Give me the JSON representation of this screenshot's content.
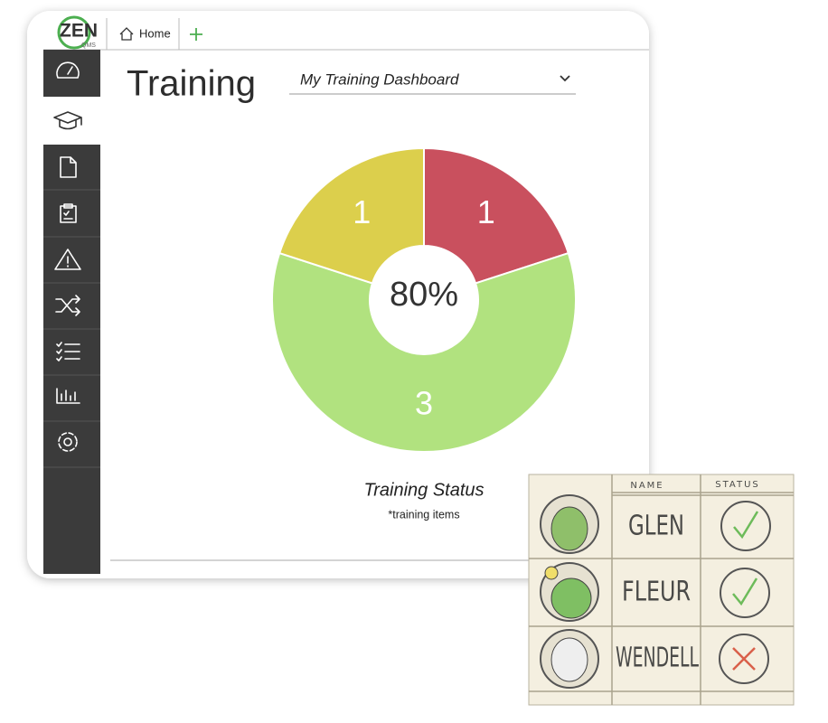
{
  "app": {
    "logo": "ZEN",
    "logo_sub": "QMS",
    "tab": "Home"
  },
  "page": {
    "title": "Training",
    "dropdown": "My Training Dashboard"
  },
  "chart_data": {
    "type": "pie",
    "donut": true,
    "values": [
      1,
      3,
      1
    ],
    "colors": [
      "#c9505e",
      "#b1e27f",
      "#dccf4c"
    ],
    "center_label": "80%",
    "title": "Training Status",
    "subtitle": "*training items"
  },
  "illustration": {
    "headers": [
      "NAME",
      "STATUS"
    ],
    "names": [
      "GLEN",
      "FLEUR",
      "WENDELL"
    ]
  }
}
